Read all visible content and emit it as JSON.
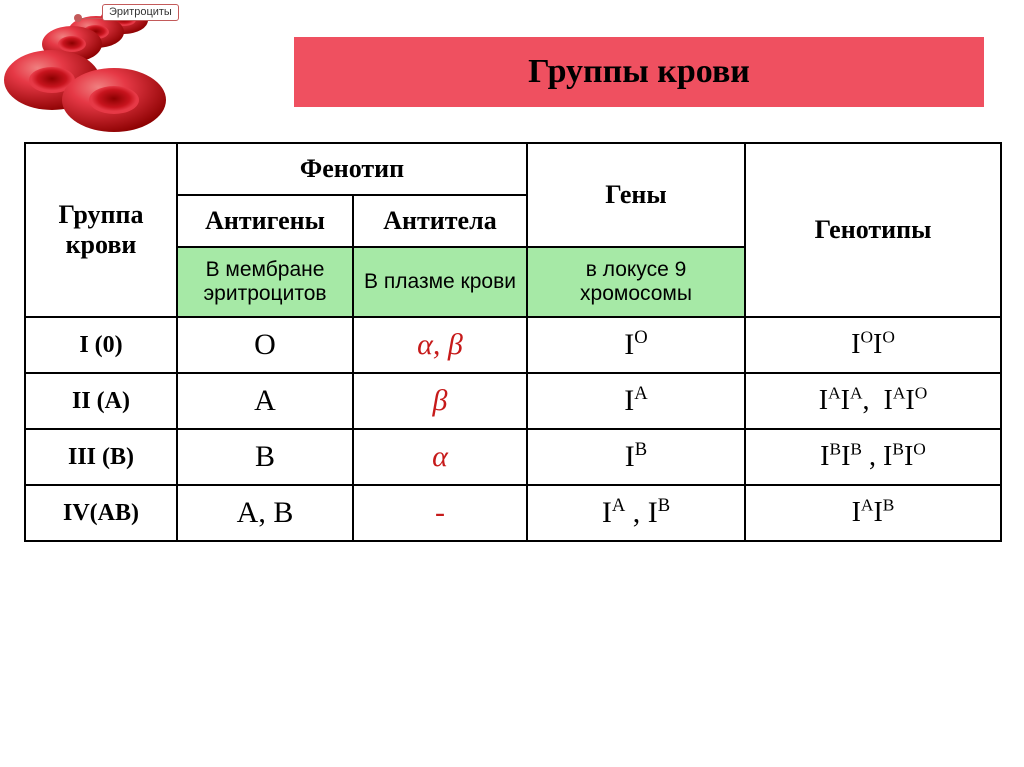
{
  "colors": {
    "banner_bg": "#ef5060",
    "green_bg": "#a6e9a6",
    "antibody_text": "#c61a1a",
    "border": "#000000",
    "cell_red": "#c8141e",
    "cell_mid": "#e63946",
    "cell_highlight": "#f08080",
    "cell_rim": "#8b0000",
    "callout_border": "#c35a5a"
  },
  "illustration_label": "Эритроциты",
  "title": "Группы крови",
  "table": {
    "header": {
      "group": "Группа крови",
      "phenotype": "Фенотип",
      "antigens": "Антигены",
      "antibodies": "Антитела",
      "genes": "Гены",
      "genotypes": "Генотипы"
    },
    "subheader": {
      "antigens_loc": "В мембране эритроцитов",
      "antibodies_loc": "В плазме крови",
      "genes_loc": "в локусе 9 хромосомы"
    },
    "rows": [
      {
        "group": "I (0)",
        "antigen": "O",
        "antibody_html": "α, β",
        "gene_html": "I<sup>O</sup>",
        "genotype_html": "I<sup>O</sup>I<sup>O</sup>"
      },
      {
        "group": "II (A)",
        "antigen": "A",
        "antibody_html": "β",
        "gene_html": "I<sup>A</sup>",
        "genotype_html": "I<sup>A</sup>I<sup>A</sup>,&nbsp;&nbsp;I<sup>A</sup>I<sup>O</sup>"
      },
      {
        "group": "III (B)",
        "antigen": "B",
        "antibody_html": "α",
        "gene_html": "I<sup>B</sup>",
        "genotype_html": "I<sup>B</sup>I<sup>B</sup> , I<sup>B</sup>I<sup>O</sup>"
      },
      {
        "group": "IV(AB)",
        "antigen": "A, B",
        "antibody_html": "-",
        "gene_html": "I<sup>A</sup> , I<sup>B</sup>",
        "genotype_html": "I<sup>A</sup>I<sup>B</sup>"
      }
    ]
  }
}
